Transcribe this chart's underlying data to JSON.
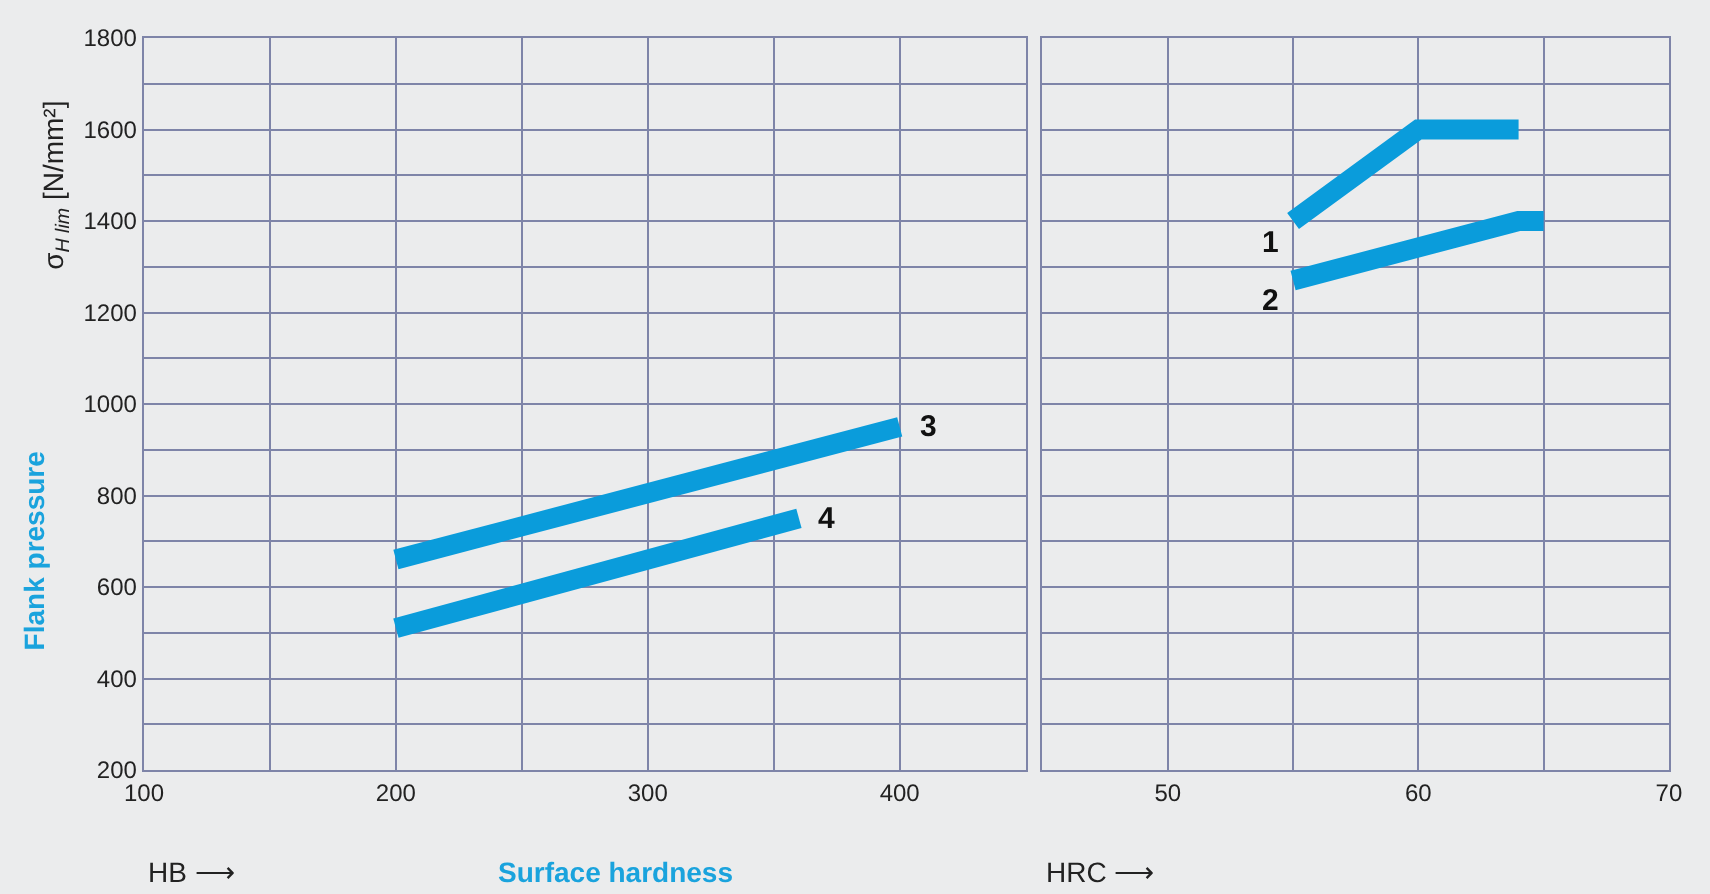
{
  "chart_data": [
    {
      "type": "line",
      "xlabel": "HB ⟶",
      "ylabel": "σ$_{H lim}$ [N/mm²]",
      "xlim": [
        100,
        450
      ],
      "xticks": [
        100,
        {
          "value": 150,
          "label": null
        },
        200,
        {
          "value": 250,
          "label": null
        },
        300,
        {
          "value": 350,
          "label": null
        },
        400,
        {
          "value": 450,
          "label": null
        }
      ],
      "ylim": [
        200,
        1800
      ],
      "yticks": [
        200,
        {
          "value": 300,
          "label": null
        },
        400,
        {
          "value": 500,
          "label": null
        },
        600,
        {
          "value": 700,
          "label": null
        },
        800,
        {
          "value": 900,
          "label": null
        },
        1000,
        {
          "value": 1100,
          "label": null
        },
        1200,
        {
          "value": 1300,
          "label": null
        },
        1400,
        {
          "value": 1500,
          "label": null
        },
        1600,
        {
          "value": 1700,
          "label": null
        },
        1800
      ],
      "grid": true,
      "marker": "none",
      "series": [
        {
          "color": "#0a9cdb",
          "x": [
            200,
            400
          ],
          "values": [
            660,
            950
          ]
        },
        {
          "color": "#0a9cdb",
          "x": [
            200,
            360
          ],
          "values": [
            510,
            750
          ]
        }
      ],
      "annotations": [
        {
          "text": "3",
          "x": 400,
          "y": 950
        },
        {
          "text": "4",
          "x": 360,
          "y": 750
        },
        "Flank pressure",
        "Surface hardness"
      ]
    },
    {
      "type": "line",
      "xlabel": "HRC ⟶",
      "xlim": [
        45,
        70
      ],
      "xticks": [
        {
          "value": 45,
          "label": null
        },
        50,
        {
          "value": 55,
          "label": null
        },
        60,
        {
          "value": 65,
          "label": null
        },
        70
      ],
      "ylim": [
        200,
        1800
      ],
      "yticks": [
        200,
        300,
        400,
        500,
        600,
        700,
        800,
        900,
        1000,
        1100,
        1200,
        1300,
        1400,
        1500,
        1600,
        1700,
        1800
      ],
      "tick_labels": "x",
      "grid": true,
      "marker": "none",
      "series": [
        {
          "color": "#0a9cdb",
          "x": [
            55,
            60,
            64
          ],
          "values": [
            1400,
            1600,
            1600
          ]
        },
        {
          "color": "#0a9cdb",
          "x": [
            55,
            64,
            65
          ],
          "values": [
            1270,
            1400,
            1400
          ]
        }
      ],
      "annotations": [
        {
          "text": "1",
          "x": 55,
          "y": 1400
        },
        {
          "text": "2",
          "x": 55,
          "y": 1270
        }
      ]
    }
  ]
}
